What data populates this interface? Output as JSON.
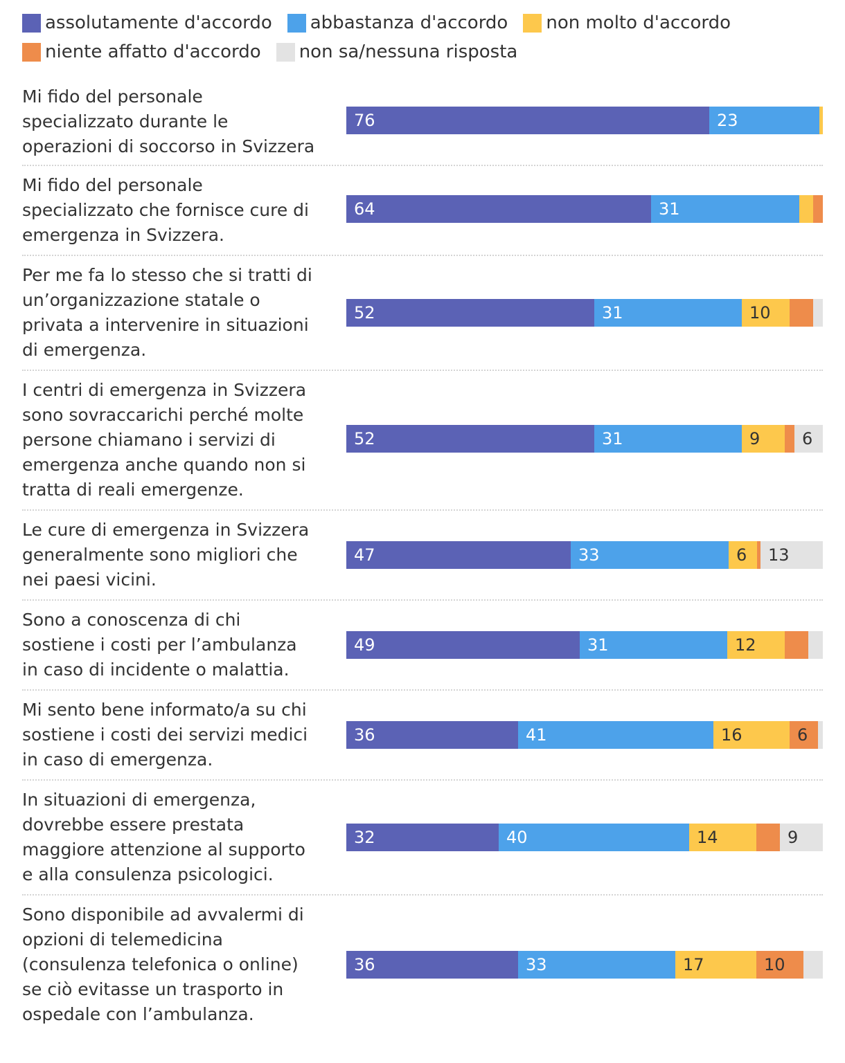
{
  "chart_data": {
    "type": "bar",
    "orientation": "horizontal",
    "stacked": true,
    "xlim": [
      0,
      100
    ],
    "legend_position": "top-left",
    "series": [
      {
        "name": "assolutamente d'accordo",
        "color": "#5b62b5",
        "label_color": "#ffffff",
        "values": [
          76,
          64,
          52,
          52,
          47,
          49,
          36,
          32,
          36
        ]
      },
      {
        "name": "abbastanza d'accordo",
        "color": "#4da2ea",
        "label_color": "#ffffff",
        "values": [
          23,
          31,
          31,
          31,
          33,
          31,
          41,
          40,
          33
        ]
      },
      {
        "name": "non molto d'accordo",
        "color": "#fdc84c",
        "label_color": "#333333",
        "values": [
          0.7,
          3,
          10,
          9,
          6,
          12,
          16,
          14,
          17
        ]
      },
      {
        "name": "niente affatto d'accordo",
        "color": "#ee8c4b",
        "label_color": "#333333",
        "values": [
          0,
          2,
          5,
          2,
          0.8,
          5,
          6,
          5,
          10
        ]
      },
      {
        "name": "non sa/nessuna risposta",
        "color": "#e3e3e3",
        "label_color": "#333333",
        "values": [
          0,
          0,
          2,
          6,
          13,
          3,
          1,
          9,
          4
        ]
      }
    ],
    "categories": [
      "Mi fido del personale\nspecializzato durante le\noperazioni di soccorso in Svizzera",
      "Mi fido del personale\nspecializzato che fornisce cure di\nemergenza in Svizzera.",
      "Per me fa lo stesso che si tratti di\nun’organizzazione statale o\nprivata a intervenire in situazioni\ndi emergenza.",
      "I centri di emergenza in Svizzera\nsono sovraccarichi perché molte\npersone chiamano i servizi di\nemergenza anche quando non si\ntratta di reali emergenze.",
      "Le cure di emergenza in Svizzera\ngeneralmente sono migliori che\nnei paesi vicini.",
      "Sono a conoscenza di chi\nsostiene i costi per l’ambulanza\nin caso di incidente o malattia.",
      "Mi sento bene informato/a su chi\nsostiene i costi dei servizi medici\nin caso di emergenza.",
      "In situazioni di emergenza,\ndovrebbe essere prestata\nmaggiore attenzione al supporto\ne alla consulenza psicologici.",
      "Sono disponibile ad avvalermi di\nopzioni di telemedicina\n(consulenza telefonica o online)\nse ciò evitasse un trasporto in\nospedale con l’ambulanza."
    ],
    "data_labels": [
      [
        "76",
        "23",
        "",
        "",
        ""
      ],
      [
        "64",
        "31",
        "",
        "",
        ""
      ],
      [
        "52",
        "31",
        "10",
        "",
        ""
      ],
      [
        "52",
        "31",
        "9",
        "",
        "6"
      ],
      [
        "47",
        "33",
        "6",
        "",
        "13"
      ],
      [
        "49",
        "31",
        "12",
        "",
        ""
      ],
      [
        "36",
        "41",
        "16",
        "6",
        ""
      ],
      [
        "32",
        "40",
        "14",
        "",
        "9"
      ],
      [
        "36",
        "33",
        "17",
        "10",
        ""
      ]
    ]
  }
}
